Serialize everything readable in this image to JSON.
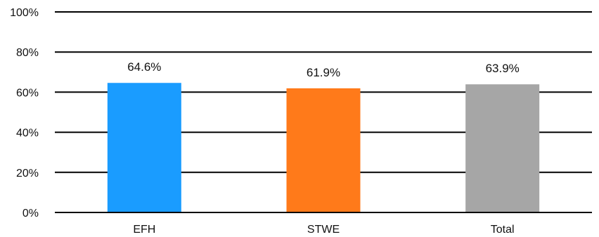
{
  "chart_data": {
    "type": "bar",
    "categories": [
      "EFH",
      "STWE",
      "Total"
    ],
    "values": [
      64.6,
      61.9,
      63.9
    ],
    "value_labels": [
      "64.6%",
      "61.9%",
      "63.9%"
    ],
    "colors": [
      "#1a9cff",
      "#ff7a1a",
      "#a6a6a6"
    ],
    "ylim": [
      0,
      100
    ],
    "yticks": [
      0,
      20,
      40,
      60,
      80,
      100
    ],
    "ytick_labels": [
      "0%",
      "20%",
      "40%",
      "60%",
      "80%",
      "100%"
    ],
    "grid": true,
    "title": "",
    "xlabel": "",
    "ylabel": ""
  }
}
